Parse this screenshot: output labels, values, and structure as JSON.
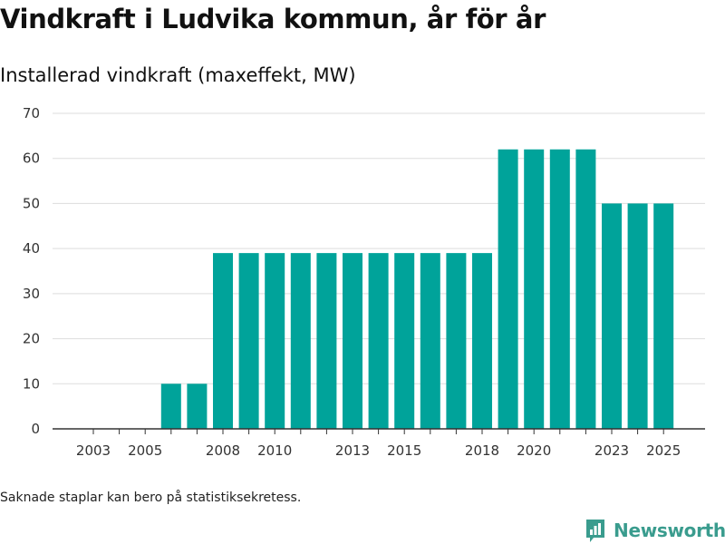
{
  "title": "Vindkraft i Ludvika kommun, år för år",
  "subtitle": "Installerad vindkraft (maxeffekt, MW)",
  "footnote": "Saknade staplar kan bero på statistiksekretess.",
  "brand": {
    "name": "Newsworthy",
    "icon": "newsworthy-logo-icon",
    "color": "#3a9c8e"
  },
  "colors": {
    "bar": "#00a39a",
    "grid": "#dddddd",
    "axis": "#333333",
    "text": "#333333"
  },
  "chart_data": {
    "type": "bar",
    "title": "Installerad vindkraft (maxeffekt, MW)",
    "xlabel": "",
    "ylabel": "",
    "ylim": [
      0,
      70
    ],
    "yticks": [
      0,
      10,
      20,
      30,
      40,
      50,
      60,
      70
    ],
    "grid": true,
    "categories": [
      "2003",
      "2004",
      "2005",
      "2006",
      "2007",
      "2008",
      "2009",
      "2010",
      "2011",
      "2012",
      "2013",
      "2014",
      "2015",
      "2016",
      "2017",
      "2018",
      "2019",
      "2020",
      "2021",
      "2022",
      "2023",
      "2024",
      "2025"
    ],
    "xtick_labels": [
      "2003",
      "2005",
      "2008",
      "2010",
      "2013",
      "2015",
      "2018",
      "2020",
      "2023",
      "2025"
    ],
    "values": [
      null,
      null,
      null,
      10,
      10,
      39,
      39,
      39,
      39,
      39,
      39,
      39,
      39,
      39,
      39,
      39,
      62,
      62,
      62,
      62,
      50,
      50,
      50
    ]
  }
}
